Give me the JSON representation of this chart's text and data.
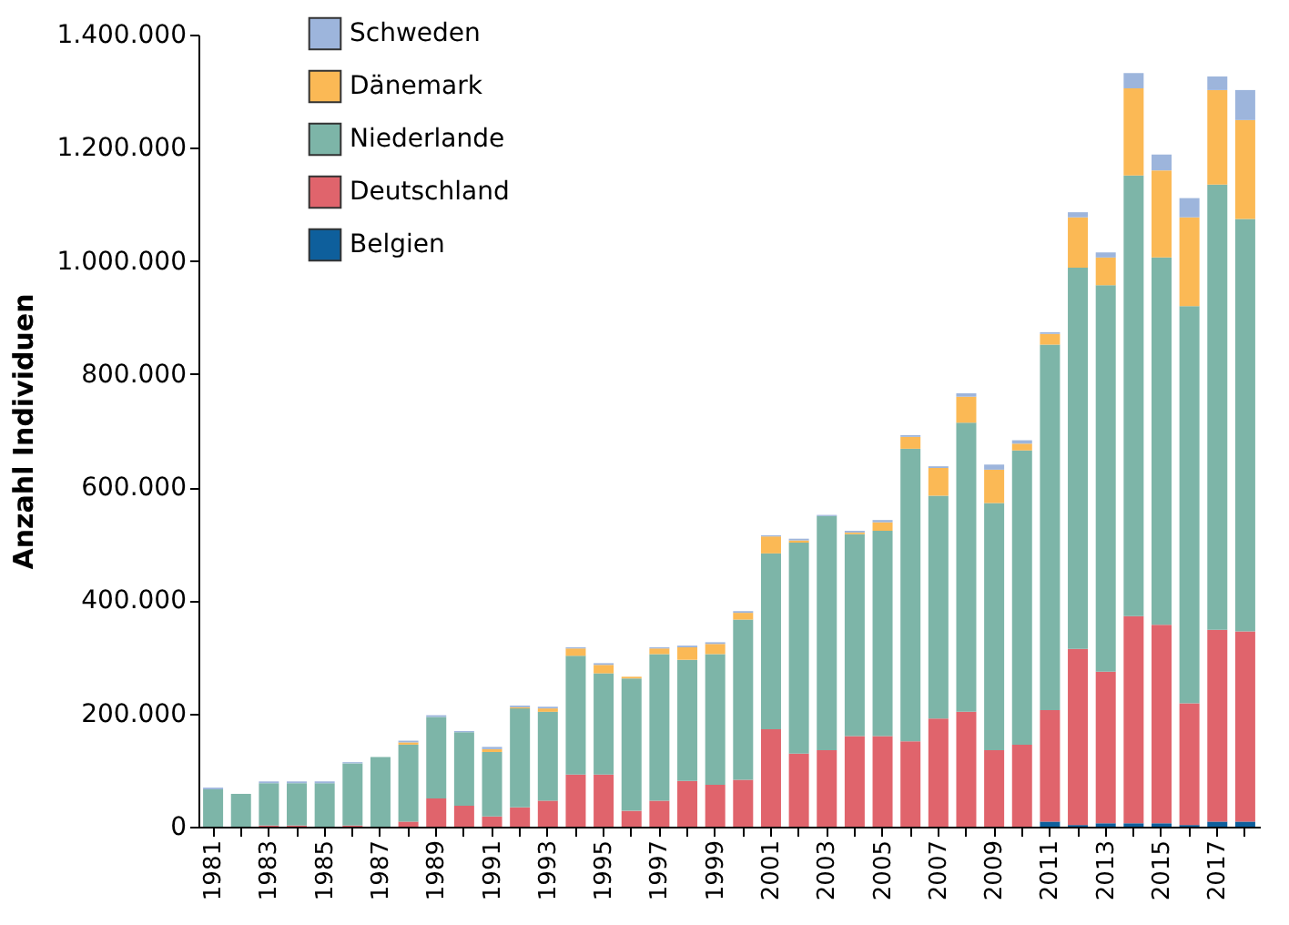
{
  "chart_data": {
    "type": "bar",
    "stacked": true,
    "ylabel": "Anzahl Individuen",
    "categories": [
      "1981",
      null,
      "1983",
      null,
      "1985",
      null,
      "1987",
      null,
      "1989",
      null,
      "1991",
      null,
      "1993",
      null,
      "1995",
      null,
      "1997",
      null,
      "1999",
      null,
      "2001",
      null,
      "2003",
      null,
      "2005",
      null,
      "2007",
      null,
      "2009",
      null,
      "2011",
      null,
      "2013",
      null,
      "2015",
      null,
      "2017",
      null
    ],
    "series": [
      {
        "name": "Belgien",
        "color": "#0e5f9c",
        "values": [
          0,
          0,
          0,
          0,
          0,
          0,
          0,
          0,
          0,
          0,
          0,
          0,
          0,
          0,
          0,
          0,
          0,
          0,
          0,
          0,
          0,
          0,
          0,
          0,
          0,
          0,
          0,
          0,
          0,
          0,
          9000,
          3000,
          6000,
          6000,
          6000,
          3000,
          9000,
          9000
        ]
      },
      {
        "name": "Deutschland",
        "color": "#e0646c",
        "values": [
          0,
          0,
          2000,
          2000,
          0,
          2000,
          0,
          9000,
          50000,
          37000,
          18000,
          34000,
          46000,
          92000,
          92000,
          28000,
          46000,
          81000,
          74000,
          83000,
          172000,
          129000,
          135000,
          160000,
          160000,
          151000,
          191000,
          203000,
          135000,
          145000,
          197000,
          311000,
          268000,
          366000,
          351000,
          215000,
          339000,
          336000
        ]
      },
      {
        "name": "Niederlande",
        "color": "#7db5a8",
        "values": [
          66000,
          58000,
          75000,
          75000,
          77000,
          110000,
          123000,
          136000,
          144000,
          130000,
          114000,
          175000,
          157000,
          210000,
          179000,
          234000,
          259000,
          214000,
          231000,
          283000,
          311000,
          373000,
          414000,
          357000,
          363000,
          517000,
          394000,
          511000,
          437000,
          520000,
          646000,
          674000,
          683000,
          779000,
          649000,
          702000,
          787000,
          729000
        ]
      },
      {
        "name": "Dänemark",
        "color": "#fbb955",
        "values": [
          0,
          0,
          0,
          0,
          0,
          0,
          0,
          4000,
          0,
          0,
          5000,
          2000,
          6000,
          13000,
          15000,
          3000,
          10000,
          22000,
          18000,
          12000,
          30000,
          4000,
          0,
          3000,
          15000,
          21000,
          49000,
          46000,
          59000,
          12000,
          19000,
          89000,
          49000,
          154000,
          154000,
          157000,
          167000,
          175000
        ]
      },
      {
        "name": "Schweden",
        "color": "#9db5dc",
        "values": [
          3000,
          0,
          3000,
          3000,
          3000,
          2000,
          0,
          3000,
          3000,
          2000,
          4000,
          3000,
          3000,
          2000,
          3000,
          0,
          2000,
          3000,
          3000,
          3000,
          2000,
          3000,
          2000,
          3000,
          4000,
          3000,
          3000,
          6000,
          9000,
          6000,
          3000,
          9000,
          9000,
          27000,
          28000,
          34000,
          24000,
          53000
        ]
      }
    ],
    "ylim": [
      0,
      1400000
    ],
    "yticks": [
      {
        "value": 0,
        "label": "0"
      },
      {
        "value": 200000,
        "label": "200.000"
      },
      {
        "value": 400000,
        "label": "400.000"
      },
      {
        "value": 600000,
        "label": "600.000"
      },
      {
        "value": 800000,
        "label": "800.000"
      },
      {
        "value": 1000000,
        "label": "1.000.000"
      },
      {
        "value": 1200000,
        "label": "1.200.000"
      },
      {
        "value": 1400000,
        "label": "1.400.000"
      }
    ],
    "grid": false,
    "legend": "top left"
  }
}
